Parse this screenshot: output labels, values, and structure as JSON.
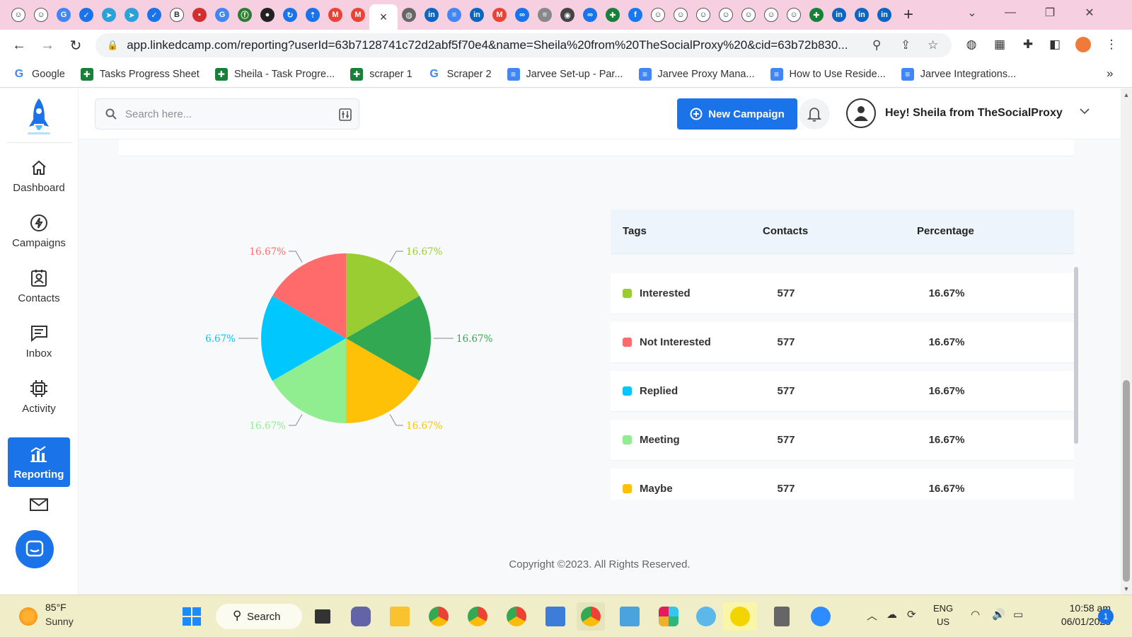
{
  "browser": {
    "url": "app.linkedcamp.com/reporting?userId=63b7128741c72d2abf5f70e4&name=Sheila%20from%20TheSocialProxy%20&cid=63b72b830...",
    "tab_close_glyph": "×",
    "new_tab_glyph": "+",
    "bookmarks": [
      {
        "label": "Google",
        "icon": "google-icon",
        "color": "#4285f4"
      },
      {
        "label": "Tasks Progress Sheet",
        "icon": "sheets-icon",
        "color": "#188038"
      },
      {
        "label": "Sheila - Task Progre...",
        "icon": "sheets-icon",
        "color": "#188038"
      },
      {
        "label": "scraper 1",
        "icon": "sheets-icon",
        "color": "#188038"
      },
      {
        "label": "Scraper 2",
        "icon": "google-icon",
        "color": "#4285f4"
      },
      {
        "label": "Jarvee Set-up - Par...",
        "icon": "docs-icon",
        "color": "#4285f4"
      },
      {
        "label": "Jarvee Proxy Mana...",
        "icon": "docs-icon",
        "color": "#4285f4"
      },
      {
        "label": "How to Use Reside...",
        "icon": "docs-icon",
        "color": "#4285f4"
      },
      {
        "label": "Jarvee Integrations...",
        "icon": "docs-icon",
        "color": "#4285f4"
      }
    ],
    "more_bookmarks_glyph": "»"
  },
  "sidebar": {
    "items": [
      {
        "label": "Dashboard",
        "icon": "home-icon"
      },
      {
        "label": "Campaigns",
        "icon": "lightning-icon"
      },
      {
        "label": "Contacts",
        "icon": "contact-card-icon"
      },
      {
        "label": "Inbox",
        "icon": "chat-icon"
      },
      {
        "label": "Activity",
        "icon": "chip-icon"
      },
      {
        "label": "Reporting",
        "icon": "bar-chart-icon",
        "active": true
      }
    ]
  },
  "header": {
    "search_placeholder": "Search here...",
    "new_campaign_label": "New Campaign",
    "greeting": "Hey! Sheila from TheSocialProxy"
  },
  "chart_data": {
    "type": "pie",
    "title": "",
    "slices": [
      {
        "label": "Interested",
        "value": 16.67,
        "display": "16.67%",
        "color": "#9ACD32"
      },
      {
        "label": "Not Interested",
        "value": 16.67,
        "display": "16.67%",
        "color": "#FF6B6B"
      },
      {
        "label": "Replied",
        "value": 16.67,
        "display": "16.67%",
        "color": "#00C8FF"
      },
      {
        "label": "Meeting",
        "value": 16.67,
        "display": "16.67%",
        "color": "#90EE90"
      },
      {
        "label": "Maybe",
        "value": 16.67,
        "display": "16.67%",
        "color": "#FFC107"
      },
      {
        "label": "",
        "value": 16.67,
        "display": "16.67%",
        "color": "#32A852"
      }
    ]
  },
  "table": {
    "headers": {
      "tags": "Tags",
      "contacts": "Contacts",
      "percentage": "Percentage"
    },
    "rows": [
      {
        "tag": "Interested",
        "contacts": "577",
        "percentage": "16.67%",
        "color": "#9ACD32"
      },
      {
        "tag": "Not Interested",
        "contacts": "577",
        "percentage": "16.67%",
        "color": "#FF6B6B"
      },
      {
        "tag": "Replied",
        "contacts": "577",
        "percentage": "16.67%",
        "color": "#00C8FF"
      },
      {
        "tag": "Meeting",
        "contacts": "577",
        "percentage": "16.67%",
        "color": "#90EE90"
      },
      {
        "tag": "Maybe",
        "contacts": "577",
        "percentage": "16.67%",
        "color": "#FFC107"
      }
    ]
  },
  "footer": {
    "copyright": "Copyright ©2023. All Rights Reserved."
  },
  "taskbar": {
    "weather_temp": "85°F",
    "weather_condition": "Sunny",
    "search_label": "Search",
    "lang_line1": "ENG",
    "lang_line2": "US",
    "time": "10:58 am",
    "date": "06/01/2023",
    "notification_count": "1"
  },
  "colors": {
    "accent": "#1a73e8"
  }
}
